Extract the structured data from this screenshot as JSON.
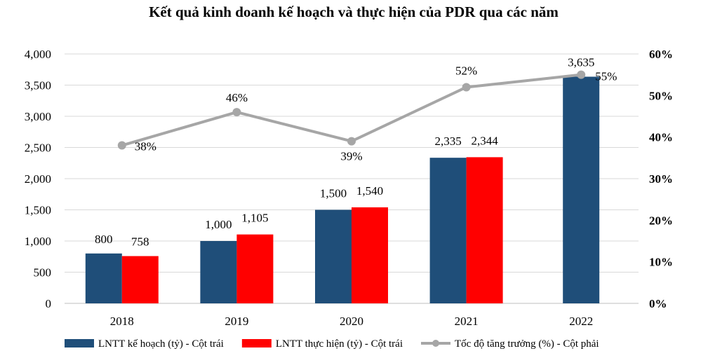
{
  "chart_data": {
    "type": "bar",
    "title": "Kết quả kinh doanh kế hoạch và thực hiện của PDR qua các năm",
    "categories": [
      "2018",
      "2019",
      "2020",
      "2021",
      "2022"
    ],
    "series": [
      {
        "name": "LNTT kế hoạch (tỷ) - Cột trái",
        "type": "bar",
        "axis": "left",
        "color": "#1F4E79",
        "values": [
          800,
          1000,
          1500,
          2335,
          3635
        ],
        "labels": [
          "800",
          "1,000",
          "1,500",
          "2,335",
          "3,635"
        ]
      },
      {
        "name": "LNTT thực hiện (tỷ) - Cột trái",
        "type": "bar",
        "axis": "left",
        "color": "#FF0000",
        "values": [
          758,
          1105,
          1540,
          2344,
          null
        ],
        "labels": [
          "758",
          "1,105",
          "1,540",
          "2,344",
          null
        ]
      },
      {
        "name": "Tốc độ tăng trưởng (%) - Cột phải",
        "type": "line",
        "axis": "right",
        "color": "#A6A6A6",
        "values": [
          38,
          46,
          39,
          52,
          55
        ],
        "labels": [
          "38%",
          "46%",
          "39%",
          "52%",
          "55%"
        ]
      }
    ],
    "left_axis": {
      "ylim": [
        0,
        4000
      ],
      "ticks": [
        0,
        500,
        1000,
        1500,
        2000,
        2500,
        3000,
        3500,
        4000
      ],
      "tick_labels": [
        "0",
        "500",
        "1,000",
        "1,500",
        "2,000",
        "2,500",
        "3,000",
        "3,500",
        "4,000"
      ]
    },
    "right_axis": {
      "ylim": [
        0,
        60
      ],
      "ticks": [
        0,
        10,
        20,
        30,
        40,
        50,
        60
      ],
      "tick_labels": [
        "0%",
        "10%",
        "20%",
        "30%",
        "40%",
        "50%",
        "60%"
      ]
    },
    "grid": true,
    "legend_position": "bottom"
  }
}
